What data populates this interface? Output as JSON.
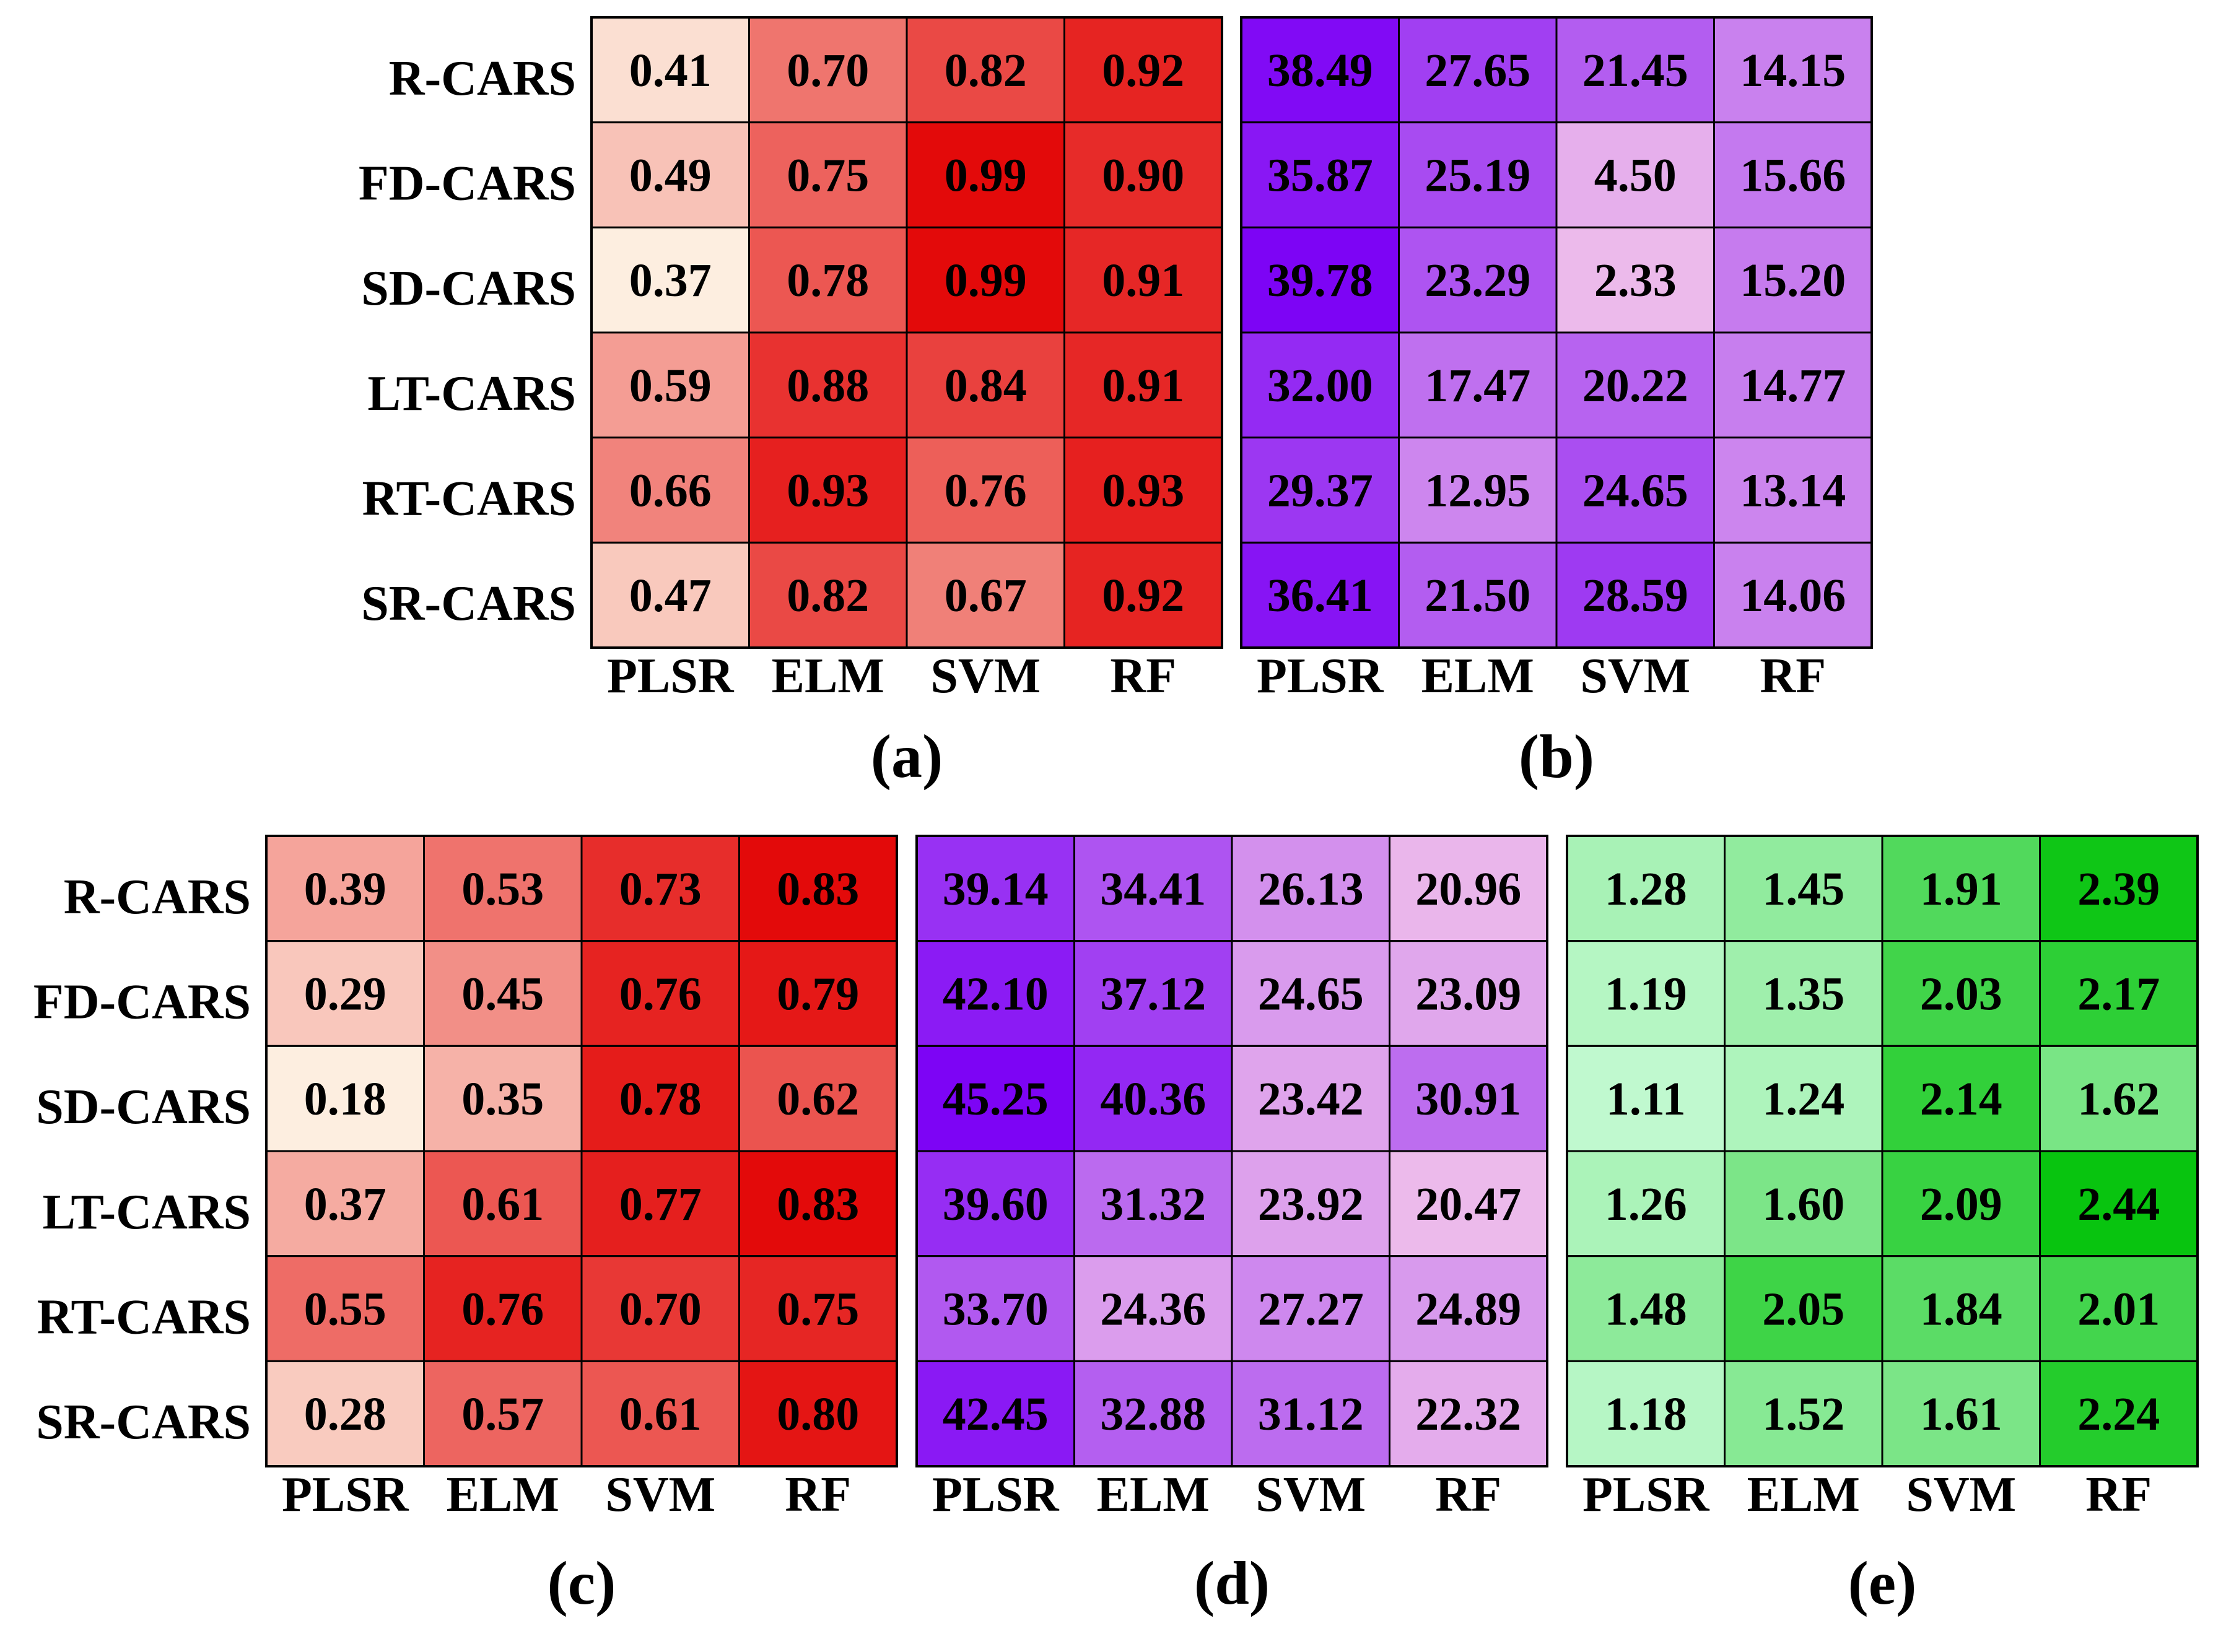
{
  "chart_data": [
    {
      "type": "heatmap",
      "label": "(a)",
      "palette": {
        "low": "#fdeee0",
        "high": "#e30a0a"
      },
      "range": [
        0.37,
        0.99
      ],
      "rows": [
        "R-CARS",
        "FD-CARS",
        "SD-CARS",
        "LT-CARS",
        "RT-CARS",
        "SR-CARS"
      ],
      "columns": [
        "PLSR",
        "ELM",
        "SVM",
        "RF"
      ],
      "values": [
        [
          "0.41",
          "0.70",
          "0.82",
          "0.92"
        ],
        [
          "0.49",
          "0.75",
          "0.99",
          "0.90"
        ],
        [
          "0.37",
          "0.78",
          "0.99",
          "0.91"
        ],
        [
          "0.59",
          "0.88",
          "0.84",
          "0.91"
        ],
        [
          "0.66",
          "0.93",
          "0.76",
          "0.93"
        ],
        [
          "0.47",
          "0.82",
          "0.67",
          "0.92"
        ]
      ]
    },
    {
      "type": "heatmap",
      "label": "(b)",
      "palette": {
        "low": "#ecbaeb",
        "high": "#7d04f5"
      },
      "range": [
        2.33,
        39.78
      ],
      "rows": [
        "R-CARS",
        "FD-CARS",
        "SD-CARS",
        "LT-CARS",
        "RT-CARS",
        "SR-CARS"
      ],
      "columns": [
        "PLSR",
        "ELM",
        "SVM",
        "RF"
      ],
      "values": [
        [
          "38.49",
          "27.65",
          "21.45",
          "14.15"
        ],
        [
          "35.87",
          "25.19",
          "4.50",
          "15.66"
        ],
        [
          "39.78",
          "23.29",
          "2.33",
          "15.20"
        ],
        [
          "32.00",
          "17.47",
          "20.22",
          "14.77"
        ],
        [
          "29.37",
          "12.95",
          "24.65",
          "13.14"
        ],
        [
          "36.41",
          "21.50",
          "28.59",
          "14.06"
        ]
      ]
    },
    {
      "type": "heatmap",
      "label": "(c)",
      "palette": {
        "low": "#fdeee0",
        "high": "#e30a0a"
      },
      "range": [
        0.18,
        0.83
      ],
      "rows": [
        "R-CARS",
        "FD-CARS",
        "SD-CARS",
        "LT-CARS",
        "RT-CARS",
        "SR-CARS"
      ],
      "columns": [
        "PLSR",
        "ELM",
        "SVM",
        "RF"
      ],
      "values": [
        [
          "0.39",
          "0.53",
          "0.73",
          "0.83"
        ],
        [
          "0.29",
          "0.45",
          "0.76",
          "0.79"
        ],
        [
          "0.18",
          "0.35",
          "0.78",
          "0.62"
        ],
        [
          "0.37",
          "0.61",
          "0.77",
          "0.83"
        ],
        [
          "0.55",
          "0.76",
          "0.70",
          "0.75"
        ],
        [
          "0.28",
          "0.57",
          "0.61",
          "0.80"
        ]
      ]
    },
    {
      "type": "heatmap",
      "label": "(d)",
      "palette": {
        "low": "#ecbaeb",
        "high": "#7d04f5"
      },
      "range": [
        20.47,
        45.25
      ],
      "rows": [
        "R-CARS",
        "FD-CARS",
        "SD-CARS",
        "LT-CARS",
        "RT-CARS",
        "SR-CARS"
      ],
      "columns": [
        "PLSR",
        "ELM",
        "SVM",
        "RF"
      ],
      "values": [
        [
          "39.14",
          "34.41",
          "26.13",
          "20.96"
        ],
        [
          "42.10",
          "37.12",
          "24.65",
          "23.09"
        ],
        [
          "45.25",
          "40.36",
          "23.42",
          "30.91"
        ],
        [
          "39.60",
          "31.32",
          "23.92",
          "20.47"
        ],
        [
          "33.70",
          "24.36",
          "27.27",
          "24.89"
        ],
        [
          "42.45",
          "32.88",
          "31.12",
          "22.32"
        ]
      ]
    },
    {
      "type": "heatmap",
      "label": "(e)",
      "palette": {
        "low": "#c0f9cf",
        "high": "#08c40f"
      },
      "range": [
        1.11,
        2.44
      ],
      "rows": [
        "R-CARS",
        "FD-CARS",
        "SD-CARS",
        "LT-CARS",
        "RT-CARS",
        "SR-CARS"
      ],
      "columns": [
        "PLSR",
        "ELM",
        "SVM",
        "RF"
      ],
      "values": [
        [
          "1.28",
          "1.45",
          "1.91",
          "2.39"
        ],
        [
          "1.19",
          "1.35",
          "2.03",
          "2.17"
        ],
        [
          "1.11",
          "1.24",
          "2.14",
          "1.62"
        ],
        [
          "1.26",
          "1.60",
          "2.09",
          "2.44"
        ],
        [
          "1.48",
          "2.05",
          "1.84",
          "2.01"
        ],
        [
          "1.18",
          "1.52",
          "1.61",
          "2.24"
        ]
      ]
    }
  ]
}
